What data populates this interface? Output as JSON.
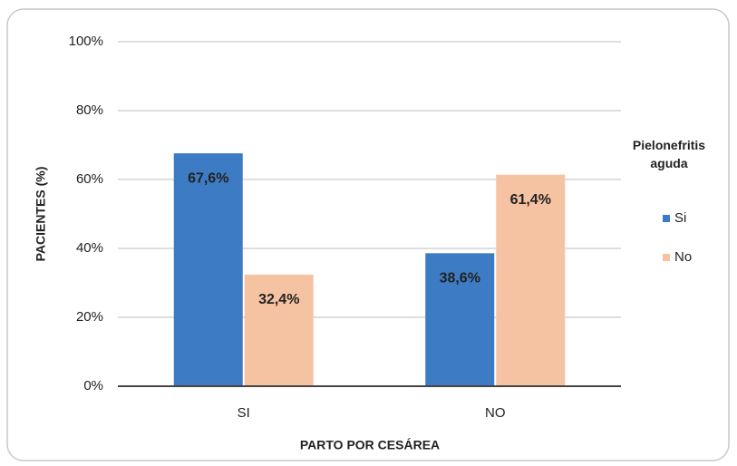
{
  "chart_data": {
    "type": "bar",
    "y_label": "PACIENTES (%)",
    "x_label": "PARTO POR CESÁREA",
    "legend_title": "Pielonefritis aguda",
    "legend_position": "right",
    "categories": [
      "SI",
      "NO"
    ],
    "series": [
      {
        "name": "Si",
        "color": "#3d7cc4",
        "values": [
          67.6,
          38.6
        ],
        "value_labels": [
          "67,6%",
          "38,6%"
        ]
      },
      {
        "name": "No",
        "color": "#f6c3a2",
        "values": [
          32.4,
          61.4
        ],
        "value_labels": [
          "32,4%",
          "61,4%"
        ]
      }
    ],
    "ylim": [
      0,
      100
    ],
    "yticks": [
      {
        "value": 0,
        "label": "0%"
      },
      {
        "value": 20,
        "label": "20%"
      },
      {
        "value": 40,
        "label": "40%"
      },
      {
        "value": 60,
        "label": "60%"
      },
      {
        "value": 80,
        "label": "80%"
      },
      {
        "value": 100,
        "label": "100%"
      }
    ],
    "grid": true
  }
}
